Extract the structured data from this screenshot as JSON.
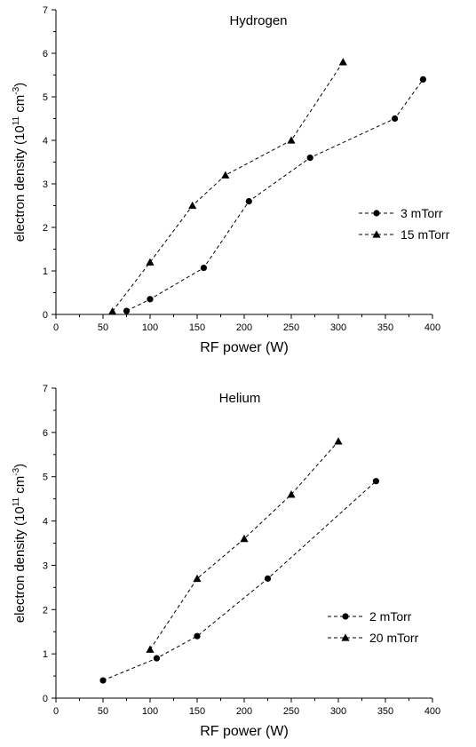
{
  "chart_data": [
    {
      "type": "line",
      "title": "Hydrogen",
      "xlabel": "RF power (W)",
      "ylabel_main": "electron density (10",
      "ylabel_exp1": "11",
      "ylabel_unit": " cm",
      "ylabel_exp2": "-3",
      "ylabel_close": ")",
      "xlim": [
        0,
        400
      ],
      "ylim": [
        0,
        7
      ],
      "xticks": [
        "0",
        "50",
        "100",
        "150",
        "200",
        "250",
        "300",
        "350",
        "400"
      ],
      "yticks": [
        "0",
        "1",
        "2",
        "3",
        "4",
        "5",
        "6",
        "7"
      ],
      "grid": false,
      "legend_position": "right",
      "series": [
        {
          "name": "3 mTorr",
          "marker": "circle",
          "x": [
            75,
            100,
            157,
            205,
            270,
            360,
            390
          ],
          "y": [
            0.08,
            0.35,
            1.07,
            2.6,
            3.6,
            4.5,
            5.4
          ]
        },
        {
          "name": "15 mTorr",
          "marker": "triangle",
          "x": [
            60,
            100,
            145,
            180,
            250,
            305
          ],
          "y": [
            0.07,
            1.2,
            2.5,
            3.2,
            4.0,
            5.8
          ]
        }
      ]
    },
    {
      "type": "line",
      "title": "Helium",
      "xlabel": "RF power (W)",
      "ylabel_main": "electron density (10",
      "ylabel_exp1": "11",
      "ylabel_unit": " cm",
      "ylabel_exp2": "-3",
      "ylabel_close": ")",
      "xlim": [
        0,
        400
      ],
      "ylim": [
        0,
        7
      ],
      "xticks": [
        "0",
        "50",
        "100",
        "150",
        "200",
        "250",
        "300",
        "350",
        "400"
      ],
      "yticks": [
        "0",
        "1",
        "2",
        "3",
        "4",
        "5",
        "6",
        "7"
      ],
      "grid": false,
      "legend_position": "bottom-right",
      "series": [
        {
          "name": "2 mTorr",
          "marker": "circle",
          "x": [
            50,
            107,
            150,
            225,
            340
          ],
          "y": [
            0.4,
            0.9,
            1.4,
            2.7,
            4.9
          ]
        },
        {
          "name": "20 mTorr",
          "marker": "triangle",
          "x": [
            100,
            150,
            200,
            250,
            300
          ],
          "y": [
            1.1,
            2.7,
            3.6,
            4.6,
            5.8
          ]
        }
      ]
    }
  ]
}
